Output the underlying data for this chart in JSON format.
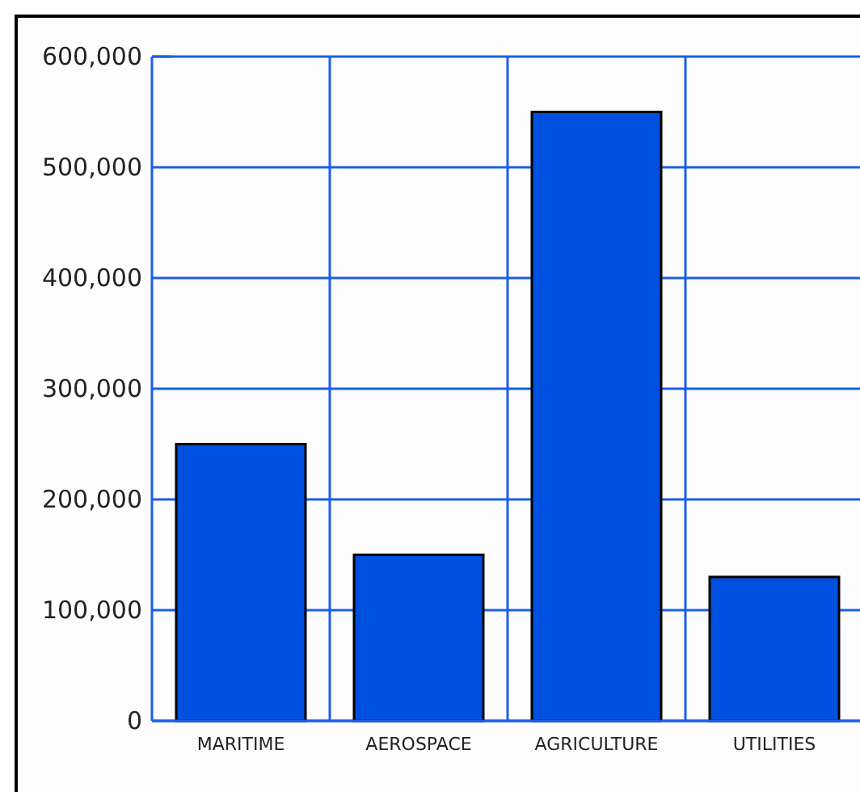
{
  "chart_data": {
    "type": "bar",
    "categories": [
      "MARITIME",
      "AEROSPACE",
      "AGRICULTURE",
      "UTILITIES"
    ],
    "values": [
      250000,
      150000,
      550000,
      130000
    ],
    "color": "#0050e0",
    "ylim": [
      0,
      600000
    ],
    "yticks": [
      {
        "value": 0,
        "label": "0"
      },
      {
        "value": 100000,
        "label": "100,000"
      },
      {
        "value": 200000,
        "label": "200,000"
      },
      {
        "value": 300000,
        "label": "300,000"
      },
      {
        "value": 400000,
        "label": "400,000"
      },
      {
        "value": 500000,
        "label": "500,000"
      },
      {
        "value": 600000,
        "label": "600,000"
      }
    ],
    "grid": true
  }
}
